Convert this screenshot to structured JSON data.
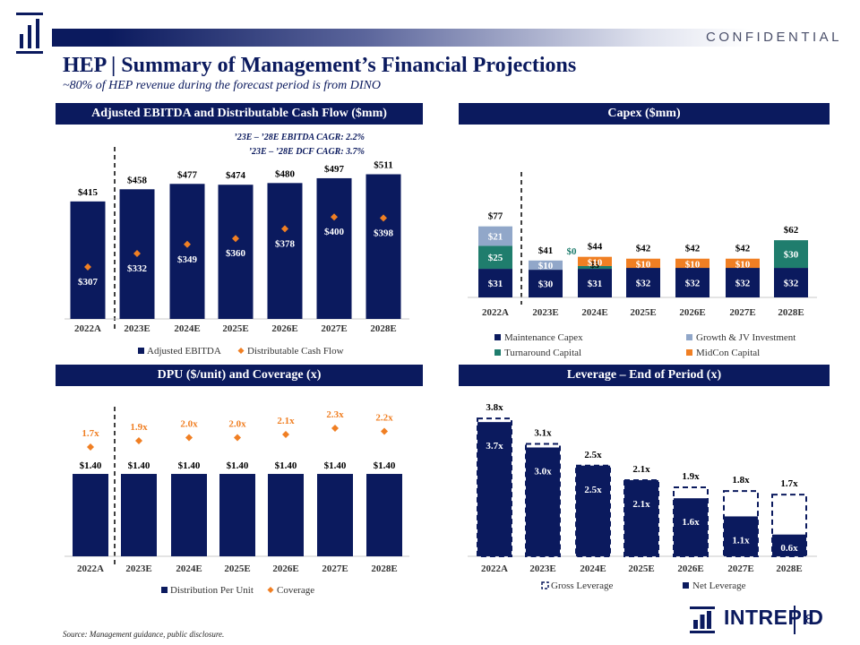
{
  "header": {
    "confidential": "CONFIDENTIAL",
    "title": "HEP | Summary of Management’s Financial Projections",
    "subtitle": "~80% of HEP revenue during the forecast period is from DINO"
  },
  "colors": {
    "navy": "#0b1a5e",
    "orange": "#f07f23",
    "light_blue": "#91a7c9",
    "teal": "#1f7d6d"
  },
  "panels": {
    "ebitda": "Adjusted EBITDA and Distributable Cash Flow ($mm)",
    "capex": "Capex ($mm)",
    "dpu": "DPU ($/unit) and Coverage (x)",
    "leverage": "Leverage – End of Period (x)"
  },
  "chart_data": [
    {
      "id": "ebitda",
      "type": "bar",
      "categories": [
        "2022A",
        "2023E",
        "2024E",
        "2025E",
        "2026E",
        "2027E",
        "2028E"
      ],
      "series": [
        {
          "name": "Adjusted EBITDA",
          "values": [
            415,
            458,
            477,
            474,
            480,
            497,
            511
          ],
          "labels": [
            "$415",
            "$458",
            "$477",
            "$474",
            "$480",
            "$497",
            "$511"
          ],
          "color": "#0b1a5e"
        },
        {
          "name": "Distributable Cash Flow",
          "values": [
            307,
            332,
            349,
            360,
            378,
            400,
            398
          ],
          "labels": [
            "$307",
            "$332",
            "$349",
            "$360",
            "$378",
            "$400",
            "$398"
          ],
          "color": "#f07f23",
          "marker": "diamond"
        }
      ],
      "annotations": [
        "’23E – ’28E EBITDA CAGR: 2.2%",
        "’23E – ’28E DCF CAGR: 3.7%"
      ],
      "legend": "bottom"
    },
    {
      "id": "capex",
      "type": "bar",
      "stacked": true,
      "categories": [
        "2022A",
        "2023E",
        "2024E",
        "2025E",
        "2026E",
        "2027E",
        "2028E"
      ],
      "series": [
        {
          "name": "Maintenance Capex",
          "values": [
            31,
            30,
            31,
            32,
            32,
            32,
            32
          ],
          "labels": [
            "$31",
            "$30",
            "$31",
            "$32",
            "$32",
            "$32",
            "$32"
          ],
          "color": "#0b1a5e"
        },
        {
          "name": "Turnaround Capital",
          "values": [
            25,
            0,
            3,
            0,
            0,
            0,
            30
          ],
          "labels": [
            "$25",
            "",
            "$3",
            "",
            "",
            "",
            "$30"
          ],
          "color": "#1f7d6d"
        },
        {
          "name": "Growth & JV Investment",
          "values": [
            21,
            10,
            0,
            0,
            0,
            0,
            0
          ],
          "labels": [
            "$21",
            "$10",
            "$0",
            "",
            "",
            "",
            ""
          ],
          "color": "#91a7c9"
        },
        {
          "name": "MidCon Capital",
          "values": [
            0,
            0,
            10,
            10,
            10,
            10,
            0
          ],
          "labels": [
            "",
            "",
            "$10",
            "$10",
            "$10",
            "$10",
            ""
          ],
          "color": "#f07f23"
        }
      ],
      "totals": [
        "$77",
        "$41",
        "$44",
        "$42",
        "$42",
        "$42",
        "$62"
      ],
      "legend": "bottom"
    },
    {
      "id": "dpu",
      "type": "bar",
      "categories": [
        "2022A",
        "2023E",
        "2024E",
        "2025E",
        "2026E",
        "2027E",
        "2028E"
      ],
      "series": [
        {
          "name": "Distribution Per Unit",
          "values": [
            1.4,
            1.4,
            1.4,
            1.4,
            1.4,
            1.4,
            1.4
          ],
          "labels": [
            "$1.40",
            "$1.40",
            "$1.40",
            "$1.40",
            "$1.40",
            "$1.40",
            "$1.40"
          ],
          "color": "#0b1a5e"
        },
        {
          "name": "Coverage",
          "values": [
            1.7,
            1.9,
            2.0,
            2.0,
            2.1,
            2.3,
            2.2
          ],
          "labels": [
            "1.7x",
            "1.9x",
            "2.0x",
            "2.0x",
            "2.1x",
            "2.3x",
            "2.2x"
          ],
          "color": "#f07f23",
          "marker": "diamond"
        }
      ],
      "legend": "bottom"
    },
    {
      "id": "leverage",
      "type": "bar",
      "categories": [
        "2022A",
        "2023E",
        "2024E",
        "2025E",
        "2026E",
        "2027E",
        "2028E"
      ],
      "series": [
        {
          "name": "Net Leverage",
          "values": [
            3.7,
            3.0,
            2.5,
            2.1,
            1.6,
            1.1,
            0.6
          ],
          "labels": [
            "3.7x",
            "3.0x",
            "2.5x",
            "2.1x",
            "1.6x",
            "1.1x",
            "0.6x"
          ],
          "color": "#0b1a5e"
        },
        {
          "name": "Gross Leverage",
          "values": [
            3.8,
            3.1,
            2.5,
            2.1,
            1.9,
            1.8,
            1.7
          ],
          "labels": [
            "3.8x",
            "3.1x",
            "2.5x",
            "2.1x",
            "1.9x",
            "1.8x",
            "1.7x"
          ],
          "color": "#0b1a5e",
          "style": "dashed-outline"
        }
      ],
      "legend": "bottom"
    }
  ],
  "footer": {
    "source": "Source: Management guidance, public disclosure.",
    "brand": "INTREPID",
    "page": "8"
  }
}
